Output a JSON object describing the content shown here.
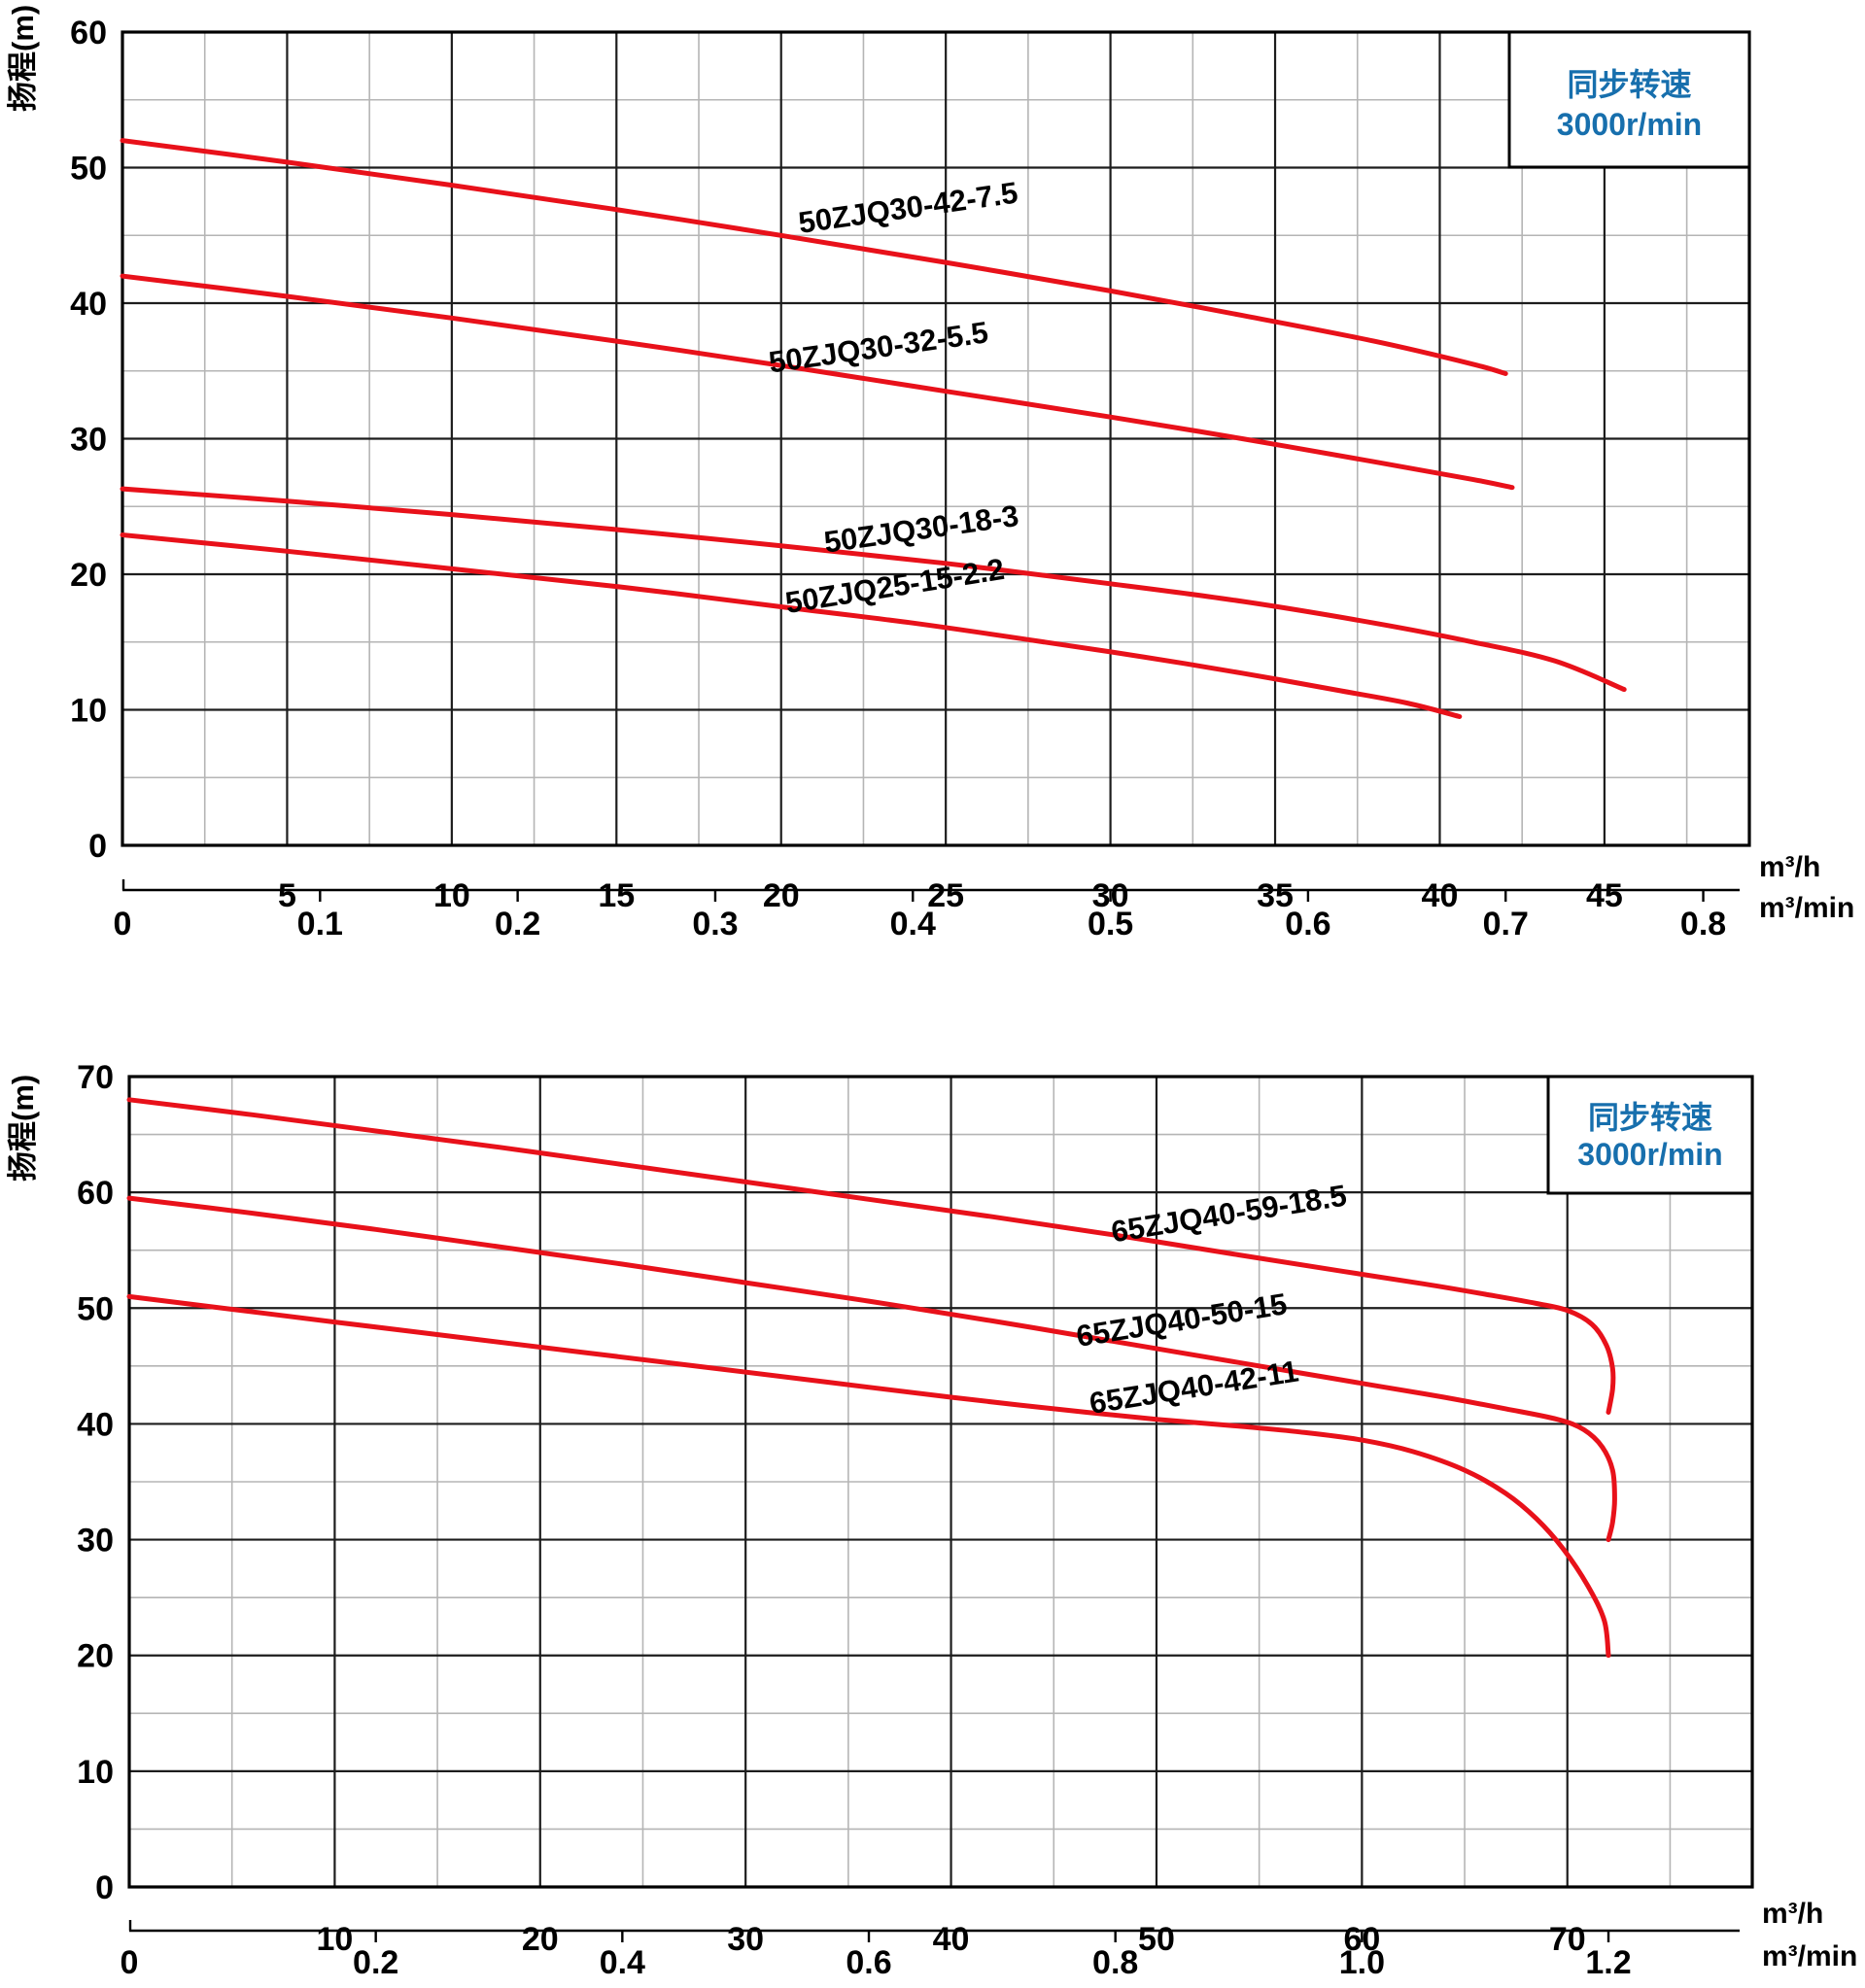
{
  "colors": {
    "curve": "#e8111a",
    "grid_major": "#1d1d1d",
    "grid_minor": "#b5b5b5",
    "border": "#000000",
    "text": "#000000",
    "legend_text": "#176fad",
    "background": "#ffffff"
  },
  "chart_data": [
    {
      "type": "line",
      "title": "",
      "ylabel": "扬程(m)",
      "x_unit_primary": "m³/h",
      "x_unit_secondary": "m³/min",
      "legend": [
        "同步转速",
        "3000r/min"
      ],
      "legend_position": "top-right",
      "grid": "on",
      "xlim": [
        0,
        49.4
      ],
      "ylim": [
        0,
        60
      ],
      "x_major": 5,
      "x_minor": 2.5,
      "y_major": 10,
      "y_minor": 5,
      "x_tick_labels": [
        5,
        10,
        15,
        20,
        25,
        30,
        35,
        40,
        45
      ],
      "y_tick_labels": [
        0,
        10,
        20,
        30,
        40,
        50,
        60
      ],
      "secondary_ticks": [
        "0",
        "0.1",
        "0.2",
        "0.3",
        "0.4",
        "0.5",
        "0.6",
        "0.7",
        "0.8"
      ],
      "secondary_to_primary": 60,
      "series": [
        {
          "name": "50ZJQ30-42-7.5",
          "label": {
            "x": 23.9,
            "y": 46.3,
            "angle": -8
          },
          "points": [
            [
              0,
              52
            ],
            [
              5,
              50.4
            ],
            [
              10,
              48.7
            ],
            [
              15,
              46.9
            ],
            [
              20,
              45.0
            ],
            [
              25,
              43.0
            ],
            [
              30,
              40.9
            ],
            [
              34,
              39.1
            ],
            [
              38,
              37.2
            ],
            [
              41,
              35.5
            ],
            [
              42,
              34.8
            ]
          ]
        },
        {
          "name": "50ZJQ30-32-5.5",
          "label": {
            "x": 23.0,
            "y": 36.0,
            "angle": -8
          },
          "points": [
            [
              0,
              42
            ],
            [
              5,
              40.5
            ],
            [
              10,
              38.9
            ],
            [
              15,
              37.2
            ],
            [
              20,
              35.4
            ],
            [
              25,
              33.5
            ],
            [
              30,
              31.6
            ],
            [
              34,
              30.0
            ],
            [
              38,
              28.3
            ],
            [
              41,
              27.0
            ],
            [
              42.2,
              26.4
            ]
          ]
        },
        {
          "name": "50ZJQ30-18-3",
          "label": {
            "x": 24.3,
            "y": 22.6,
            "angle": -8
          },
          "points": [
            [
              0,
              26.3
            ],
            [
              5,
              25.4
            ],
            [
              10,
              24.4
            ],
            [
              15,
              23.3
            ],
            [
              20,
              22.1
            ],
            [
              25,
              20.8
            ],
            [
              30,
              19.3
            ],
            [
              34,
              18.0
            ],
            [
              38,
              16.4
            ],
            [
              41,
              15.0
            ],
            [
              43.5,
              13.6
            ],
            [
              45.6,
              11.5
            ]
          ]
        },
        {
          "name": "50ZJQ25-15-2.2",
          "label": {
            "x": 23.5,
            "y": 18.4,
            "angle": -9
          },
          "points": [
            [
              0,
              22.9
            ],
            [
              5,
              21.7
            ],
            [
              10,
              20.4
            ],
            [
              15,
              19.1
            ],
            [
              20,
              17.6
            ],
            [
              24,
              16.4
            ],
            [
              28,
              15.0
            ],
            [
              31,
              13.9
            ],
            [
              34,
              12.7
            ],
            [
              37,
              11.4
            ],
            [
              39,
              10.5
            ],
            [
              40.6,
              9.5
            ]
          ]
        }
      ]
    },
    {
      "type": "line",
      "title": "",
      "ylabel": "扬程(m)",
      "x_unit_primary": "m³/h",
      "x_unit_secondary": "m³/min",
      "legend": [
        "同步转速",
        "3000r/min"
      ],
      "legend_position": "top-right",
      "grid": "on",
      "xlim": [
        0,
        79
      ],
      "ylim": [
        0,
        70
      ],
      "x_major": 10,
      "x_minor": 5,
      "y_major": 10,
      "y_minor": 5,
      "x_tick_labels": [
        10,
        20,
        30,
        40,
        50,
        60,
        70
      ],
      "y_tick_labels": [
        0,
        10,
        20,
        30,
        40,
        50,
        60,
        70
      ],
      "secondary_ticks": [
        "0",
        "0.2",
        "0.4",
        "0.6",
        "0.8",
        "1.0",
        "1.2"
      ],
      "secondary_to_primary": 60,
      "series": [
        {
          "name": "65ZJQ40-59-18.5",
          "label": {
            "x": 53.6,
            "y": 57.3,
            "angle": -9
          },
          "points": [
            [
              0,
              68
            ],
            [
              6,
              66.7
            ],
            [
              12,
              65.3
            ],
            [
              18,
              63.9
            ],
            [
              24,
              62.4
            ],
            [
              30,
              60.9
            ],
            [
              36,
              59.4
            ],
            [
              42,
              57.9
            ],
            [
              48,
              56.3
            ],
            [
              54,
              54.6
            ],
            [
              59,
              53.2
            ],
            [
              63,
              52.1
            ],
            [
              66,
              51.2
            ],
            [
              68.5,
              50.4
            ],
            [
              70,
              49.8
            ],
            [
              71.2,
              48.6
            ],
            [
              71.9,
              46.8
            ],
            [
              72.2,
              44.8
            ],
            [
              72.2,
              43.0
            ],
            [
              72.0,
              41.0
            ]
          ]
        },
        {
          "name": "65ZJQ40-50-15",
          "label": {
            "x": 51.3,
            "y": 48.1,
            "angle": -9
          },
          "points": [
            [
              0,
              59.5
            ],
            [
              6,
              58.2
            ],
            [
              12,
              56.8
            ],
            [
              18,
              55.3
            ],
            [
              24,
              53.8
            ],
            [
              30,
              52.2
            ],
            [
              36,
              50.6
            ],
            [
              42,
              48.9
            ],
            [
              48,
              47.1
            ],
            [
              53,
              45.6
            ],
            [
              57,
              44.4
            ],
            [
              61,
              43.2
            ],
            [
              64,
              42.3
            ],
            [
              67,
              41.3
            ],
            [
              69.5,
              40.4
            ],
            [
              70.8,
              39.5
            ],
            [
              71.7,
              38.0
            ],
            [
              72.2,
              36.0
            ],
            [
              72.3,
              33.5
            ],
            [
              72.2,
              31.5
            ],
            [
              72.0,
              30.0
            ]
          ]
        },
        {
          "name": "65ZJQ40-42-11",
          "label": {
            "x": 51.9,
            "y": 42.3,
            "angle": -9
          },
          "points": [
            [
              0,
              51
            ],
            [
              5,
              49.9
            ],
            [
              10,
              48.8
            ],
            [
              16,
              47.5
            ],
            [
              22,
              46.2
            ],
            [
              28,
              44.9
            ],
            [
              34,
              43.6
            ],
            [
              40,
              42.3
            ],
            [
              45,
              41.3
            ],
            [
              50,
              40.4
            ],
            [
              54,
              39.8
            ],
            [
              57,
              39.3
            ],
            [
              60,
              38.6
            ],
            [
              62.5,
              37.6
            ],
            [
              65,
              36.0
            ],
            [
              67,
              34.0
            ],
            [
              68.5,
              31.8
            ],
            [
              69.8,
              29.2
            ],
            [
              71,
              26.0
            ],
            [
              71.8,
              23.0
            ],
            [
              72,
              20.0
            ]
          ]
        }
      ]
    }
  ]
}
